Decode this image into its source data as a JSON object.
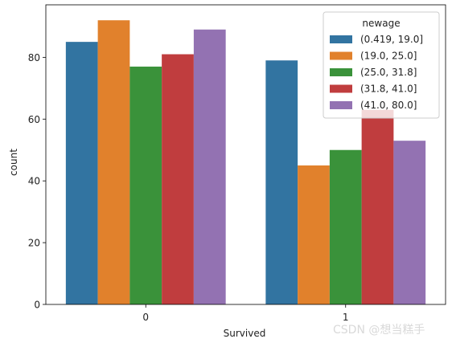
{
  "chart_data": {
    "type": "bar",
    "xlabel": "Survived",
    "ylabel": "count",
    "categories": [
      "0",
      "1"
    ],
    "ylim": [
      0,
      97
    ],
    "yticks": [
      0,
      20,
      40,
      60,
      80
    ],
    "legend": {
      "title": "newage",
      "placement": "top-right"
    },
    "series": [
      {
        "name": "(0.419, 19.0]",
        "color": "#3274a1",
        "values": [
          85,
          79
        ]
      },
      {
        "name": "(19.0, 25.0]",
        "color": "#e1812c",
        "values": [
          92,
          45
        ]
      },
      {
        "name": "(25.0, 31.8]",
        "color": "#3a923a",
        "values": [
          77,
          50
        ]
      },
      {
        "name": "(31.8, 41.0]",
        "color": "#c03d3e",
        "values": [
          81,
          63
        ]
      },
      {
        "name": "(41.0, 80.0]",
        "color": "#9372b2",
        "values": [
          89,
          53
        ]
      }
    ]
  },
  "watermark": "CSDN @想当糕手"
}
